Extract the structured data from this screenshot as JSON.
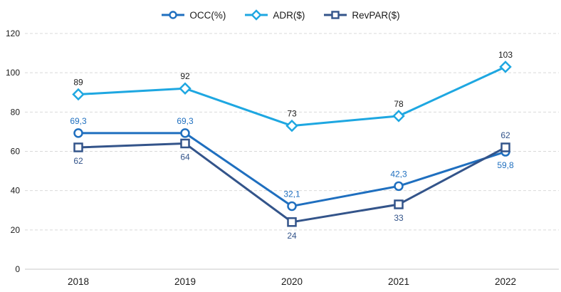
{
  "chart_data": {
    "type": "line",
    "title": "",
    "xlabel": "",
    "ylabel": "",
    "categories": [
      "2018",
      "2019",
      "2020",
      "2021",
      "2022"
    ],
    "series": [
      {
        "name": "OCC(%)",
        "marker": "circle",
        "color": "#1F6FBF",
        "label_color": "#1F6FBF",
        "values": [
          69.3,
          69.3,
          32.1,
          42.3,
          59.8
        ],
        "labels": [
          "69,3",
          "69,3",
          "32,1",
          "42,3",
          "59,8"
        ],
        "label_positions": [
          "above",
          "above",
          "above",
          "above",
          "below"
        ]
      },
      {
        "name": "ADR($)",
        "marker": "diamond",
        "color": "#1EA7E1",
        "label_color": "#1a1a1a",
        "values": [
          89,
          92,
          73,
          78,
          103
        ],
        "labels": [
          "89",
          "92",
          "73",
          "78",
          "103"
        ],
        "label_positions": [
          "above",
          "above",
          "above",
          "above",
          "above"
        ]
      },
      {
        "name": "RevPAR($)",
        "marker": "square",
        "color": "#33548A",
        "label_color": "#33548A",
        "values": [
          62,
          64,
          24,
          33,
          62
        ],
        "labels": [
          "62",
          "64",
          "24",
          "33",
          "62"
        ],
        "label_positions": [
          "below",
          "below",
          "below",
          "below",
          "above"
        ]
      }
    ],
    "ylim": [
      0,
      120
    ],
    "yticks": [
      0,
      20,
      40,
      60,
      80,
      100,
      120
    ],
    "grid": "horizontal-dashed",
    "gridline_color": "#d9d9d9",
    "baseline_color": "#c8c8c8",
    "legend_position": "top-center"
  }
}
